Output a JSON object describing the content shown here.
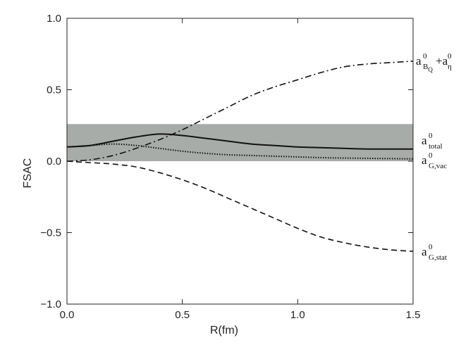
{
  "chart_data": {
    "type": "line",
    "title": "",
    "xlabel": "R(fm)",
    "ylabel": "FSAC",
    "xlim": [
      0,
      1.5
    ],
    "ylim": [
      -1.0,
      1.0
    ],
    "xticks": [
      0,
      0.5,
      1.0,
      1.5
    ],
    "xtick_labels": [
      "0.0",
      "0.5",
      "1.0",
      "1.5"
    ],
    "yticks": [
      -1.0,
      -0.5,
      0.0,
      0.5,
      1.0
    ],
    "ytick_labels": [
      "−1.0",
      "−0.5",
      "0.0",
      "0.5",
      "1.0"
    ],
    "grid": false,
    "band": {
      "y_low": 0.0,
      "y_high": 0.26,
      "color": "#a8aca9"
    },
    "series": [
      {
        "name": "a^0_{B_Q} + a^0_η",
        "label": {
          "base": "a",
          "sup": "0",
          "sub": "B",
          "subsub": "Q",
          "extra_base": " +a",
          "extra_sup": "0",
          "extra_sub": "η"
        },
        "style": "dashdot",
        "x": [
          0,
          0.1,
          0.2,
          0.3,
          0.4,
          0.5,
          0.6,
          0.7,
          0.8,
          0.9,
          1.0,
          1.1,
          1.2,
          1.3,
          1.4,
          1.5
        ],
        "y": [
          0.0,
          0.01,
          0.04,
          0.09,
          0.15,
          0.22,
          0.3,
          0.38,
          0.46,
          0.52,
          0.57,
          0.62,
          0.66,
          0.68,
          0.69,
          0.7
        ]
      },
      {
        "name": "a^0_total",
        "label": {
          "base": "a",
          "sup": "0",
          "sub": "total"
        },
        "style": "solid",
        "x": [
          0,
          0.1,
          0.2,
          0.3,
          0.4,
          0.5,
          0.6,
          0.7,
          0.8,
          0.9,
          1.0,
          1.1,
          1.2,
          1.3,
          1.4,
          1.5
        ],
        "y": [
          0.1,
          0.11,
          0.14,
          0.17,
          0.19,
          0.18,
          0.16,
          0.14,
          0.12,
          0.11,
          0.1,
          0.095,
          0.09,
          0.085,
          0.085,
          0.085
        ]
      },
      {
        "name": "a^0_{G,vac}",
        "label": {
          "base": "a",
          "sup": "0",
          "sub": "G,vac"
        },
        "style": "dotted",
        "x": [
          0,
          0.1,
          0.2,
          0.3,
          0.4,
          0.5,
          0.6,
          0.7,
          0.8,
          0.9,
          1.0,
          1.1,
          1.2,
          1.3,
          1.4,
          1.5
        ],
        "y": [
          0.1,
          0.11,
          0.12,
          0.11,
          0.09,
          0.07,
          0.055,
          0.045,
          0.04,
          0.035,
          0.03,
          0.025,
          0.022,
          0.02,
          0.018,
          0.016
        ]
      },
      {
        "name": "a^0_{G,stat}",
        "label": {
          "base": "a",
          "sup": "0",
          "sub": "G,stat"
        },
        "style": "dashed",
        "x": [
          0,
          0.1,
          0.2,
          0.3,
          0.4,
          0.5,
          0.6,
          0.7,
          0.8,
          0.9,
          1.0,
          1.1,
          1.2,
          1.3,
          1.4,
          1.5
        ],
        "y": [
          0.0,
          -0.01,
          -0.02,
          -0.04,
          -0.08,
          -0.13,
          -0.19,
          -0.26,
          -0.33,
          -0.4,
          -0.47,
          -0.53,
          -0.57,
          -0.6,
          -0.62,
          -0.63
        ]
      }
    ]
  }
}
